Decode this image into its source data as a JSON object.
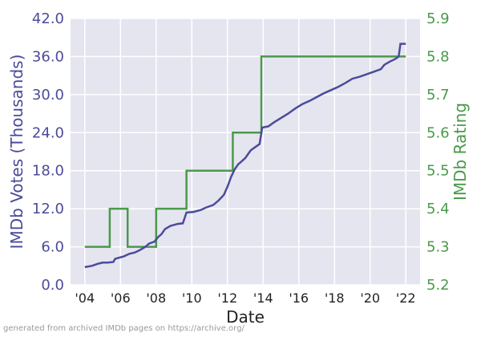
{
  "chart_data": {
    "type": "line",
    "xlabel": "Date",
    "ylabel_left": "IMDb Votes (Thousands)",
    "ylabel_right": "IMDb Rating",
    "xlim": [
      2003.2,
      2022.8
    ],
    "ylim_left": [
      0,
      42
    ],
    "ylim_right": [
      5.2,
      5.9
    ],
    "x_ticks": [
      2004,
      2006,
      2008,
      2010,
      2012,
      2014,
      2016,
      2018,
      2020,
      2022
    ],
    "x_tick_labels": [
      "'04",
      "'06",
      "'08",
      "'10",
      "'12",
      "'14",
      "'16",
      "'18",
      "'20",
      "'22"
    ],
    "y_left_ticks": [
      "0.0",
      "6.0",
      "12.0",
      "18.0",
      "24.0",
      "30.0",
      "36.0",
      "42.0"
    ],
    "y_right_ticks": [
      "5.2",
      "5.3",
      "5.4",
      "5.5",
      "5.6",
      "5.7",
      "5.8",
      "5.9"
    ],
    "grid": true,
    "colors": {
      "votes": "#4b4b9a",
      "rating": "#4a9a4a",
      "background": "#e5e5f0"
    },
    "series": [
      {
        "axis": "left",
        "points": [
          [
            2004.0,
            2.8
          ],
          [
            2004.4,
            3.0
          ],
          [
            2004.7,
            3.3
          ],
          [
            2005.0,
            3.5
          ],
          [
            2005.3,
            3.5
          ],
          [
            2005.6,
            3.6
          ],
          [
            2005.7,
            4.1
          ],
          [
            2006.2,
            4.5
          ],
          [
            2006.5,
            4.9
          ],
          [
            2006.8,
            5.1
          ],
          [
            2007.1,
            5.5
          ],
          [
            2007.4,
            6.0
          ],
          [
            2007.6,
            6.5
          ],
          [
            2007.9,
            6.8
          ],
          [
            2008.1,
            7.5
          ],
          [
            2008.3,
            8.0
          ],
          [
            2008.5,
            8.8
          ],
          [
            2008.8,
            9.3
          ],
          [
            2009.2,
            9.6
          ],
          [
            2009.5,
            9.7
          ],
          [
            2009.7,
            11.4
          ],
          [
            2010.1,
            11.5
          ],
          [
            2010.5,
            11.8
          ],
          [
            2010.8,
            12.2
          ],
          [
            2011.2,
            12.6
          ],
          [
            2011.5,
            13.3
          ],
          [
            2011.8,
            14.2
          ],
          [
            2012.0,
            15.5
          ],
          [
            2012.2,
            17.0
          ],
          [
            2012.4,
            18.2
          ],
          [
            2012.6,
            19.0
          ],
          [
            2012.8,
            19.5
          ],
          [
            2013.0,
            20.0
          ],
          [
            2013.3,
            21.2
          ],
          [
            2013.6,
            21.8
          ],
          [
            2013.8,
            22.2
          ],
          [
            2013.95,
            24.8
          ],
          [
            2014.3,
            25.0
          ],
          [
            2014.6,
            25.6
          ],
          [
            2015.0,
            26.3
          ],
          [
            2015.4,
            27.0
          ],
          [
            2015.8,
            27.8
          ],
          [
            2016.2,
            28.5
          ],
          [
            2016.6,
            29.0
          ],
          [
            2017.0,
            29.6
          ],
          [
            2017.4,
            30.2
          ],
          [
            2017.8,
            30.7
          ],
          [
            2018.2,
            31.2
          ],
          [
            2018.6,
            31.8
          ],
          [
            2019.0,
            32.5
          ],
          [
            2019.4,
            32.8
          ],
          [
            2019.8,
            33.2
          ],
          [
            2020.2,
            33.6
          ],
          [
            2020.6,
            34.0
          ],
          [
            2020.8,
            34.7
          ],
          [
            2021.1,
            35.2
          ],
          [
            2021.4,
            35.6
          ],
          [
            2021.6,
            36.0
          ],
          [
            2021.7,
            38.0
          ],
          [
            2022.0,
            38.0
          ]
        ]
      },
      {
        "axis": "right",
        "points": [
          [
            2004.0,
            5.3
          ],
          [
            2005.4,
            5.3
          ],
          [
            2005.4,
            5.4
          ],
          [
            2006.4,
            5.4
          ],
          [
            2006.4,
            5.3
          ],
          [
            2008.0,
            5.3
          ],
          [
            2008.0,
            5.4
          ],
          [
            2009.7,
            5.4
          ],
          [
            2009.7,
            5.5
          ],
          [
            2012.3,
            5.5
          ],
          [
            2012.3,
            5.6
          ],
          [
            2013.9,
            5.6
          ],
          [
            2013.9,
            5.8
          ],
          [
            2022.0,
            5.8
          ]
        ]
      }
    ]
  },
  "footer": "generated from archived IMDb pages on https://archive.org/"
}
